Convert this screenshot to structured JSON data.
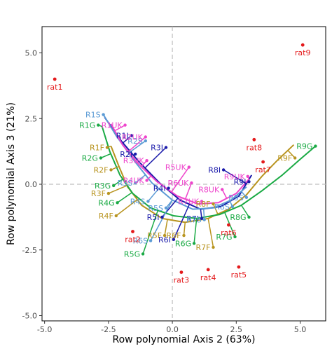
{
  "chart_data": {
    "type": "scatter",
    "xlabel": "Row polynomial Axis 2 (63%)",
    "ylabel": "Row polynomial Axis 3  (21%)",
    "xlim": [
      -5.1,
      6.0
    ],
    "ylim": [
      -5.2,
      6.0
    ],
    "xticks": [
      -5.0,
      -2.5,
      0.0,
      2.5,
      5.0
    ],
    "xtick_labels": [
      "-5.0",
      "-2.5",
      "0.0",
      "2.5",
      "5.0"
    ],
    "yticks": [
      -5.0,
      -2.5,
      0.0,
      2.5,
      5.0
    ],
    "ytick_labels": [
      "-5.0",
      "-2.5",
      "0.0",
      "2.5",
      "5.0"
    ],
    "reference_lines": {
      "x": 0,
      "y": 0,
      "style": "dashed",
      "color": "#bfbfbf"
    },
    "grid": false,
    "rats": {
      "color": "#e41a1c",
      "points": [
        {
          "label": "rat1",
          "x": -4.6,
          "y": 4.0
        },
        {
          "label": "rat2",
          "x": -1.55,
          "y": -1.8
        },
        {
          "label": "rat3",
          "x": 0.35,
          "y": -3.35
        },
        {
          "label": "rat4",
          "x": 1.4,
          "y": -3.25
        },
        {
          "label": "rat5",
          "x": 2.6,
          "y": -3.15
        },
        {
          "label": "rat6",
          "x": 2.2,
          "y": -1.55
        },
        {
          "label": "rat7",
          "x": 3.55,
          "y": 0.85
        },
        {
          "label": "rat8",
          "x": 3.2,
          "y": 1.7
        },
        {
          "label": "rat9",
          "x": 5.1,
          "y": 5.3
        }
      ]
    },
    "series": [
      {
        "name": "I",
        "color": "#1a1aaa",
        "points": [
          {
            "label": "R1I",
            "x": -1.6,
            "y": 1.85
          },
          {
            "label": "R2I",
            "x": -1.45,
            "y": 1.15
          },
          {
            "label": "R3I",
            "x": -0.25,
            "y": 1.4
          },
          {
            "label": "R4I",
            "x": -0.15,
            "y": -0.15
          },
          {
            "label": "R5I",
            "x": -0.4,
            "y": -1.25
          },
          {
            "label": "R6I",
            "x": 0.05,
            "y": -2.1
          },
          {
            "label": "R7I",
            "x": 1.15,
            "y": -1.3
          },
          {
            "label": "R8I",
            "x": 2.0,
            "y": 0.55
          },
          {
            "label": "R9I",
            "x": 3.0,
            "y": 0.1
          }
        ],
        "curve": [
          [
            -2.65,
            2.55
          ],
          [
            -2.0,
            1.65
          ],
          [
            -1.3,
            0.85
          ],
          [
            -0.5,
            0.05
          ],
          [
            0.3,
            -0.6
          ],
          [
            1.1,
            -0.95
          ],
          [
            1.9,
            -0.85
          ],
          [
            2.6,
            -0.45
          ],
          [
            3.1,
            0.35
          ]
        ]
      },
      {
        "name": "S",
        "color": "#5b9bd5",
        "points": [
          {
            "label": "R1S",
            "x": -2.7,
            "y": 2.65
          },
          {
            "label": "R2S",
            "x": -1.05,
            "y": 1.65
          },
          {
            "label": "R3S",
            "x": -1.45,
            "y": 0.05
          },
          {
            "label": "R4S",
            "x": -0.95,
            "y": -0.65
          },
          {
            "label": "R5S",
            "x": -0.25,
            "y": -0.9
          },
          {
            "label": "R6S",
            "x": -0.85,
            "y": -2.15
          },
          {
            "label": "R7S",
            "x": 1.25,
            "y": -1.35
          },
          {
            "label": "R8S",
            "x": 2.35,
            "y": -0.85
          },
          {
            "label": "R9S",
            "x": 2.9,
            "y": -0.5
          }
        ],
        "curve": [
          [
            -2.7,
            2.65
          ],
          [
            -2.2,
            1.85
          ],
          [
            -1.5,
            0.9
          ],
          [
            -0.8,
            0.05
          ],
          [
            0.0,
            -0.6
          ],
          [
            0.8,
            -0.95
          ],
          [
            1.6,
            -0.9
          ],
          [
            2.3,
            -0.6
          ],
          [
            2.9,
            -0.1
          ]
        ]
      },
      {
        "name": "UK",
        "color": "#ee44cc",
        "points": [
          {
            "label": "R1UK",
            "x": -1.85,
            "y": 2.25
          },
          {
            "label": "R2UK",
            "x": -1.05,
            "y": 1.8
          },
          {
            "label": "R3UK",
            "x": -1.0,
            "y": 0.9
          },
          {
            "label": "R4UK",
            "x": -1.0,
            "y": 0.15
          },
          {
            "label": "R5UK",
            "x": 0.65,
            "y": 0.65
          },
          {
            "label": "R6UK",
            "x": 0.75,
            "y": 0.05
          },
          {
            "label": "R7UK",
            "x": 1.15,
            "y": -0.65
          },
          {
            "label": "R8UK",
            "x": 1.95,
            "y": -0.2
          },
          {
            "label": "R9UK",
            "x": 2.95,
            "y": 0.3
          }
        ],
        "curve": [
          [
            -2.4,
            2.3
          ],
          [
            -1.95,
            1.5
          ],
          [
            -1.3,
            0.75
          ],
          [
            -0.6,
            0.1
          ],
          [
            0.2,
            -0.45
          ],
          [
            1.0,
            -0.75
          ],
          [
            1.8,
            -0.7
          ],
          [
            2.5,
            -0.35
          ],
          [
            3.0,
            0.2
          ]
        ]
      },
      {
        "name": "F",
        "color": "#b8941f",
        "points": [
          {
            "label": "R1F",
            "x": -2.55,
            "y": 1.4
          },
          {
            "label": "R2F",
            "x": -2.4,
            "y": 0.55
          },
          {
            "label": "R3F",
            "x": -2.5,
            "y": -0.35
          },
          {
            "label": "R4F",
            "x": -2.2,
            "y": -1.2
          },
          {
            "label": "R5F",
            "x": -0.3,
            "y": -1.95
          },
          {
            "label": "R6F",
            "x": 0.45,
            "y": -1.95
          },
          {
            "label": "R7F",
            "x": 1.6,
            "y": -2.4
          },
          {
            "label": "R8F",
            "x": 1.6,
            "y": -0.75
          },
          {
            "label": "R9F",
            "x": 4.8,
            "y": 1.0
          }
        ],
        "curve": [
          [
            -2.4,
            1.45
          ],
          [
            -2.1,
            0.7
          ],
          [
            -1.75,
            -0.1
          ],
          [
            -1.2,
            -0.8
          ],
          [
            -0.4,
            -1.3
          ],
          [
            0.5,
            -1.45
          ],
          [
            1.4,
            -1.3
          ],
          [
            2.2,
            -0.95
          ],
          [
            2.9,
            -0.4
          ],
          [
            3.5,
            0.3
          ],
          [
            4.1,
            0.9
          ],
          [
            4.75,
            1.5
          ]
        ]
      },
      {
        "name": "G",
        "color": "#1aaa44",
        "points": [
          {
            "label": "R1G",
            "x": -2.9,
            "y": 2.25
          },
          {
            "label": "R2G",
            "x": -2.8,
            "y": 1.0
          },
          {
            "label": "R3G",
            "x": -2.3,
            "y": -0.05
          },
          {
            "label": "R4G",
            "x": -2.15,
            "y": -0.7
          },
          {
            "label": "R5G",
            "x": -1.15,
            "y": -2.65
          },
          {
            "label": "R6G",
            "x": 0.85,
            "y": -2.25
          },
          {
            "label": "R7G",
            "x": 2.45,
            "y": -2.0
          },
          {
            "label": "R8G",
            "x": 3.0,
            "y": -1.25
          },
          {
            "label": "R9G",
            "x": 5.6,
            "y": 1.45
          }
        ],
        "curve": [
          [
            -2.75,
            2.2
          ],
          [
            -2.45,
            1.25
          ],
          [
            -2.05,
            0.35
          ],
          [
            -1.55,
            -0.35
          ],
          [
            -0.85,
            -0.9
          ],
          [
            0.05,
            -1.2
          ],
          [
            0.95,
            -1.3
          ],
          [
            1.85,
            -1.15
          ],
          [
            2.7,
            -0.8
          ],
          [
            3.5,
            -0.25
          ],
          [
            4.3,
            0.35
          ],
          [
            5.0,
            0.95
          ],
          [
            5.6,
            1.45
          ]
        ]
      }
    ]
  }
}
